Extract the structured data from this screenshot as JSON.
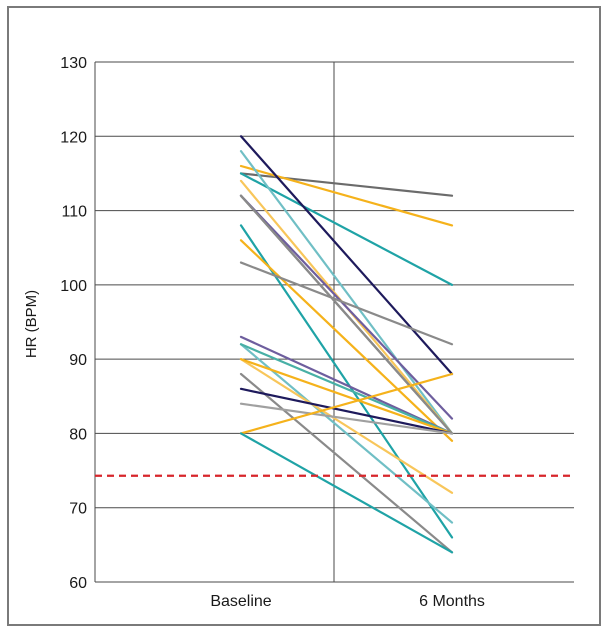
{
  "chart_data": {
    "type": "line",
    "title": "",
    "xlabel": "",
    "ylabel": "HR (BPM)",
    "categories": [
      "Baseline",
      "6 Months"
    ],
    "ylim": [
      60,
      130
    ],
    "yticks": [
      "60",
      "70",
      "80",
      "90",
      "100",
      "110",
      "120",
      "130"
    ],
    "grid": true,
    "reference_line": {
      "value": 74.3,
      "color": "#d7262b",
      "style": "dashed"
    },
    "series": [
      {
        "values": [
          115,
          112
        ],
        "color": "#6b6b6b"
      },
      {
        "values": [
          116,
          108
        ],
        "color": "#f5b21b"
      },
      {
        "values": [
          115,
          100
        ],
        "color": "#1fa3a6"
      },
      {
        "values": [
          120,
          88
        ],
        "color": "#1e1a5c"
      },
      {
        "values": [
          118,
          80
        ],
        "color": "#70bfc5"
      },
      {
        "values": [
          114,
          80
        ],
        "color": "#f8c65a"
      },
      {
        "values": [
          112,
          82
        ],
        "color": "#6e5e9e"
      },
      {
        "values": [
          112,
          80
        ],
        "color": "#6b6b6b"
      },
      {
        "values": [
          112,
          80
        ],
        "color": "#8a8a8a"
      },
      {
        "values": [
          108,
          66
        ],
        "color": "#1fa3a6"
      },
      {
        "values": [
          106,
          79
        ],
        "color": "#f5b21b"
      },
      {
        "values": [
          103,
          92
        ],
        "color": "#8a8a8a"
      },
      {
        "values": [
          93,
          80
        ],
        "color": "#6e5e9e"
      },
      {
        "values": [
          92,
          68
        ],
        "color": "#70bfc5"
      },
      {
        "values": [
          92,
          80
        ],
        "color": "#48b0a6"
      },
      {
        "values": [
          90,
          72
        ],
        "color": "#f8c65a"
      },
      {
        "values": [
          90,
          80
        ],
        "color": "#f5b21b"
      },
      {
        "values": [
          88,
          64
        ],
        "color": "#8a8a8a"
      },
      {
        "values": [
          86,
          80
        ],
        "color": "#1e1a5c"
      },
      {
        "values": [
          84,
          80
        ],
        "color": "#a0a0a0"
      },
      {
        "values": [
          80,
          88
        ],
        "color": "#f5b21b"
      },
      {
        "values": [
          80,
          64
        ],
        "color": "#1fa3a6"
      }
    ]
  }
}
